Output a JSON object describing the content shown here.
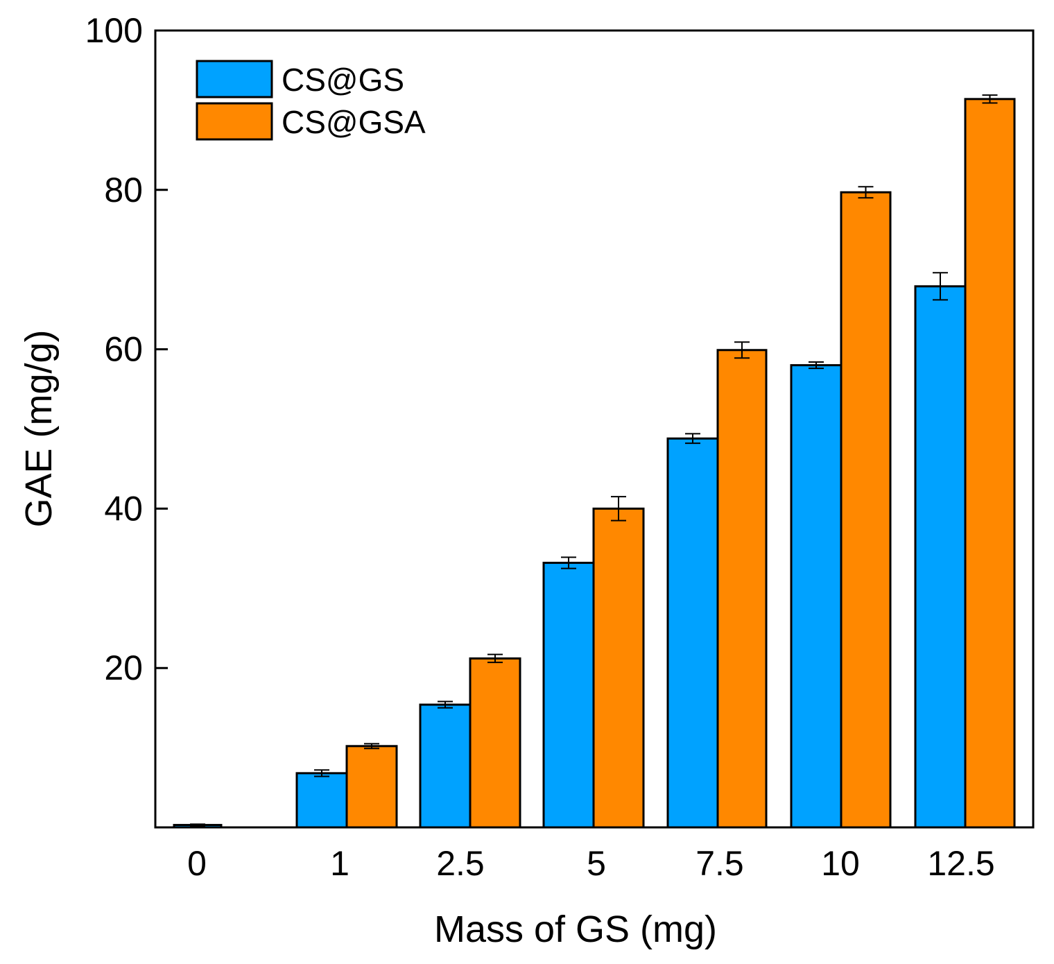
{
  "chart_data": {
    "type": "bar",
    "title": "",
    "xlabel": "Mass of GS (mg)",
    "ylabel": "GAE (mg/g)",
    "ylim": [
      0,
      100
    ],
    "yticks": [
      "20",
      "40",
      "60",
      "80",
      "100"
    ],
    "categories": [
      "0",
      "1",
      "2.5",
      "5",
      "7.5",
      "10",
      "12.5"
    ],
    "legend_position": "top-left",
    "series": [
      {
        "name": "CS@GS",
        "color": "#00A2FF",
        "values": [
          0.3,
          6.8,
          15.4,
          33.2,
          48.8,
          58.0,
          67.9
        ],
        "errors": [
          0.1,
          0.4,
          0.4,
          0.7,
          0.6,
          0.4,
          1.7
        ]
      },
      {
        "name": "CS@GSA",
        "color": "#FF8800",
        "values": [
          0.0,
          10.2,
          21.2,
          40.0,
          59.9,
          79.7,
          91.4
        ],
        "errors": [
          0.0,
          0.3,
          0.5,
          1.5,
          1.0,
          0.7,
          0.5
        ]
      }
    ]
  }
}
